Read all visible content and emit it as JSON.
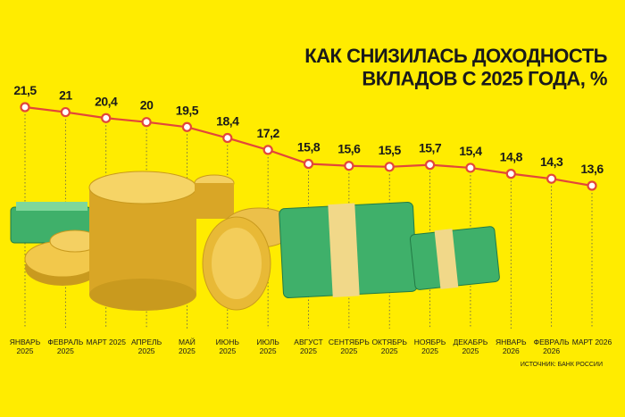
{
  "chart_data": {
    "type": "line",
    "title": "КАК СНИЗИЛАСЬ ДОХОДНОСТЬ\nВКЛАДОВ С 2025 ГОДА, %",
    "categories": [
      "ЯНВАРЬ\n2025",
      "ФЕВРАЛЬ\n2025",
      "МАРТ 2025",
      "АПРЕЛЬ\n2025",
      "МАЙ\n2025",
      "ИЮНЬ\n2025",
      "ИЮЛЬ\n2025",
      "АВГУСТ\n2025",
      "СЕНТЯБРЬ\n2025",
      "ОКТЯБРЬ\n2025",
      "НОЯБРЬ\n2025",
      "ДЕКАБРЬ\n2025",
      "ЯНВАРЬ\n2026",
      "ФЕВРАЛЬ\n2026",
      "МАРТ 2026"
    ],
    "values": [
      21.5,
      21,
      20.4,
      20,
      19.5,
      18.4,
      17.2,
      15.8,
      15.6,
      15.5,
      15.7,
      15.4,
      14.8,
      14.3,
      13.6
    ],
    "value_labels": [
      "21,5",
      "21",
      "20,4",
      "20",
      "19,5",
      "18,4",
      "17,2",
      "15,8",
      "15,6",
      "15,5",
      "15,7",
      "15,4",
      "14,8",
      "14,3",
      "13,6"
    ],
    "color": "#e2463a",
    "source": "ИСТОЧНИК: БАНК РОССИИ"
  }
}
